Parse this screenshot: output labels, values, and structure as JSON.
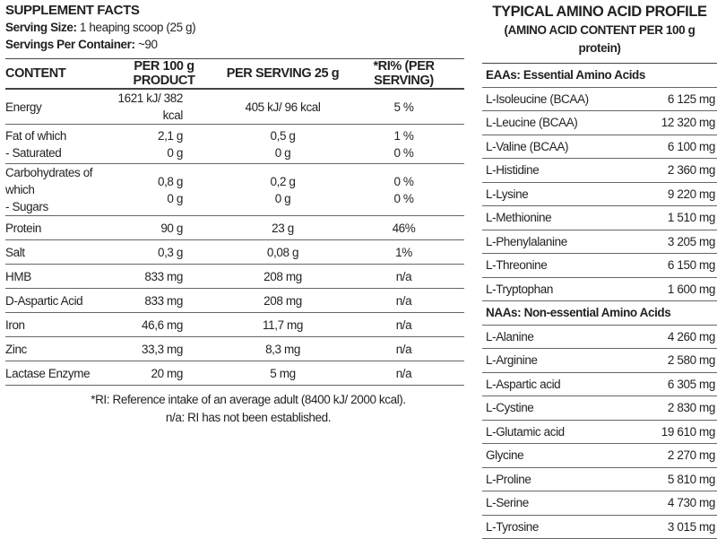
{
  "facts": {
    "title": "SUPPLEMENT FACTS",
    "serving_size_label": "Serving Size:",
    "serving_size": " 1 heaping scoop (25 g)",
    "servings_label": "Servings Per Container:",
    "servings": " ~90",
    "headers": [
      "CONTENT",
      "PER 100 g PRODUCT",
      "PER SERVING 25 g",
      "*RI% (PER SERVING)"
    ],
    "rows": [
      {
        "name": [
          "Energy"
        ],
        "per100": [
          "1621 kJ/ 382 kcal"
        ],
        "serving": [
          "405 kJ/ 96 kcal"
        ],
        "ri": [
          "5 %"
        ]
      },
      {
        "name": [
          "Fat of which",
          "- Saturated"
        ],
        "per100": [
          "2,1 g",
          "0 g"
        ],
        "serving": [
          "0,5 g",
          "0 g"
        ],
        "ri": [
          "1 %",
          "0 %"
        ]
      },
      {
        "name": [
          "Carbohydrates of which",
          "- Sugars"
        ],
        "per100": [
          "0,8 g",
          "0 g"
        ],
        "serving": [
          "0,2 g",
          "0 g"
        ],
        "ri": [
          "0 %",
          "0 %"
        ]
      },
      {
        "name": [
          "Protein"
        ],
        "per100": [
          "90 g"
        ],
        "serving": [
          "23 g"
        ],
        "ri": [
          "46%"
        ]
      },
      {
        "name": [
          "Salt"
        ],
        "per100": [
          "0,3 g"
        ],
        "serving": [
          "0,08 g"
        ],
        "ri": [
          "1%"
        ]
      },
      {
        "name": [
          "HMB"
        ],
        "per100": [
          "833 mg"
        ],
        "serving": [
          "208 mg"
        ],
        "ri": [
          "n/a"
        ]
      },
      {
        "name": [
          "D-Aspartic Acid"
        ],
        "per100": [
          "833 mg"
        ],
        "serving": [
          "208 mg"
        ],
        "ri": [
          "n/a"
        ]
      },
      {
        "name": [
          "Iron"
        ],
        "per100": [
          "46,6 mg"
        ],
        "serving": [
          "11,7 mg"
        ],
        "ri": [
          "n/a"
        ]
      },
      {
        "name": [
          "Zinc"
        ],
        "per100": [
          "33,3 mg"
        ],
        "serving": [
          "8,3 mg"
        ],
        "ri": [
          "n/a"
        ]
      },
      {
        "name": [
          "Lactase Enzyme"
        ],
        "per100": [
          "20 mg"
        ],
        "serving": [
          "5 mg"
        ],
        "ri": [
          "n/a"
        ]
      }
    ],
    "notes": [
      "*RI: Reference intake of an average adult (8400 kJ/ 2000 kcal).",
      "n/a: RI has not been established."
    ]
  },
  "amino": {
    "title": "TYPICAL AMINO ACID PROFILE",
    "subtitle": "(AMINO ACID CONTENT PER 100 g protein)",
    "sections": [
      {
        "heading": "EAAs: Essential Amino Acids",
        "items": [
          [
            "L-Isoleucine (BCAA)",
            "6 125 mg"
          ],
          [
            "L-Leucine (BCAA)",
            "12 320 mg"
          ],
          [
            "L-Valine (BCAA)",
            "6 100 mg"
          ],
          [
            "L-Histidine",
            "2 360 mg"
          ],
          [
            "L-Lysine",
            "9 220 mg"
          ],
          [
            "L-Methionine",
            "1 510 mg"
          ],
          [
            "L-Phenylalanine",
            "3 205 mg"
          ],
          [
            "L-Threonine",
            "6 150 mg"
          ],
          [
            "L-Tryptophan",
            "1 600 mg"
          ]
        ]
      },
      {
        "heading": "NAAs: Non-essential Amino Acids",
        "items": [
          [
            "L-Alanine",
            "4 260 mg"
          ],
          [
            "L-Arginine",
            "2 580 mg"
          ],
          [
            "L-Aspartic acid",
            "6 305 mg"
          ],
          [
            "L-Cystine",
            "2 830 mg"
          ],
          [
            "L-Glutamic acid",
            "19 610 mg"
          ],
          [
            "Glycine",
            "2 270 mg"
          ],
          [
            "L-Proline",
            "5 810 mg"
          ],
          [
            "L-Serine",
            "4 730 mg"
          ],
          [
            "L-Tyrosine",
            "3 015 mg"
          ]
        ]
      }
    ]
  }
}
